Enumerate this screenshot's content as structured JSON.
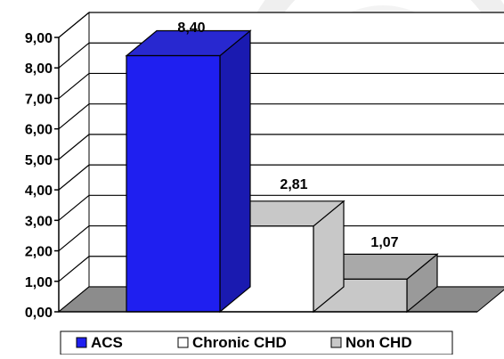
{
  "chart_data": {
    "type": "bar",
    "categories": [
      "ACS",
      "Chronic CHD",
      "Non CHD"
    ],
    "values": [
      8.4,
      2.81,
      1.07
    ],
    "value_labels": [
      "8,40",
      "2,81",
      "1,07"
    ],
    "ylim": [
      0,
      9
    ],
    "yticks": [
      0,
      1,
      2,
      3,
      4,
      5,
      6,
      7,
      8,
      9
    ],
    "ytick_labels": [
      "0,00",
      "1,00",
      "2,00",
      "3,00",
      "4,00",
      "5,00",
      "6,00",
      "7,00",
      "8,00",
      "9,00"
    ],
    "grid": true,
    "style": "3d-stepped",
    "legend": {
      "position": "bottom",
      "entries": [
        "ACS",
        "Chronic CHD",
        "Non CHD"
      ]
    },
    "colors": {
      "series": [
        "#1f1ff0",
        "#ffffff",
        "#c8c8c8"
      ],
      "series_side": [
        "#1a1ab0",
        "#c8c8c8",
        "#9a9a9a"
      ],
      "series_top": [
        "#2828d0",
        "#c8c8c8",
        "#a9a9a9"
      ],
      "floor": "#8c8c8c",
      "wall": "#ffffff",
      "grid": "#000000"
    }
  }
}
